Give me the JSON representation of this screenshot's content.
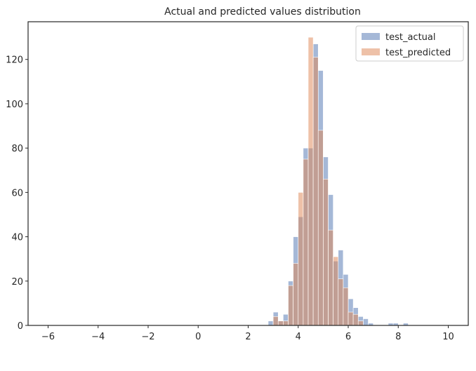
{
  "chart_data": {
    "type": "bar",
    "title": "Actual and predicted values distribution",
    "xlabel": "",
    "ylabel": "",
    "xlim": [
      -6.8,
      10.8
    ],
    "ylim": [
      0,
      137
    ],
    "x_ticks": [
      -6,
      -4,
      -2,
      0,
      2,
      4,
      6,
      8,
      10
    ],
    "y_ticks": [
      0,
      20,
      40,
      60,
      80,
      100,
      120
    ],
    "grid": false,
    "legend_position": "top-right",
    "bin_width": 0.2,
    "series": [
      {
        "name": "test_actual",
        "color": "#4c72b0",
        "bins": [
          [
            2.9,
            2
          ],
          [
            3.1,
            6
          ],
          [
            3.3,
            2
          ],
          [
            3.5,
            5
          ],
          [
            3.7,
            20
          ],
          [
            3.9,
            40
          ],
          [
            4.1,
            49
          ],
          [
            4.3,
            80
          ],
          [
            4.5,
            80
          ],
          [
            4.7,
            127
          ],
          [
            4.9,
            115
          ],
          [
            5.1,
            76
          ],
          [
            5.3,
            59
          ],
          [
            5.5,
            29
          ],
          [
            5.7,
            34
          ],
          [
            5.9,
            23
          ],
          [
            6.1,
            12
          ],
          [
            6.3,
            8
          ],
          [
            6.5,
            4
          ],
          [
            6.7,
            3
          ],
          [
            6.9,
            1
          ],
          [
            7.7,
            1
          ],
          [
            7.9,
            1
          ],
          [
            8.3,
            1
          ]
        ]
      },
      {
        "name": "test_predicted",
        "color": "#dd8452",
        "bins": [
          [
            3.1,
            4
          ],
          [
            3.3,
            2
          ],
          [
            3.5,
            2
          ],
          [
            3.7,
            18
          ],
          [
            3.9,
            28
          ],
          [
            4.1,
            60
          ],
          [
            4.3,
            75
          ],
          [
            4.5,
            130
          ],
          [
            4.7,
            121
          ],
          [
            4.9,
            88
          ],
          [
            5.1,
            66
          ],
          [
            5.3,
            43
          ],
          [
            5.5,
            31
          ],
          [
            5.7,
            21
          ],
          [
            5.9,
            17
          ],
          [
            6.1,
            6
          ],
          [
            6.3,
            5
          ],
          [
            6.5,
            2
          ]
        ]
      }
    ]
  }
}
